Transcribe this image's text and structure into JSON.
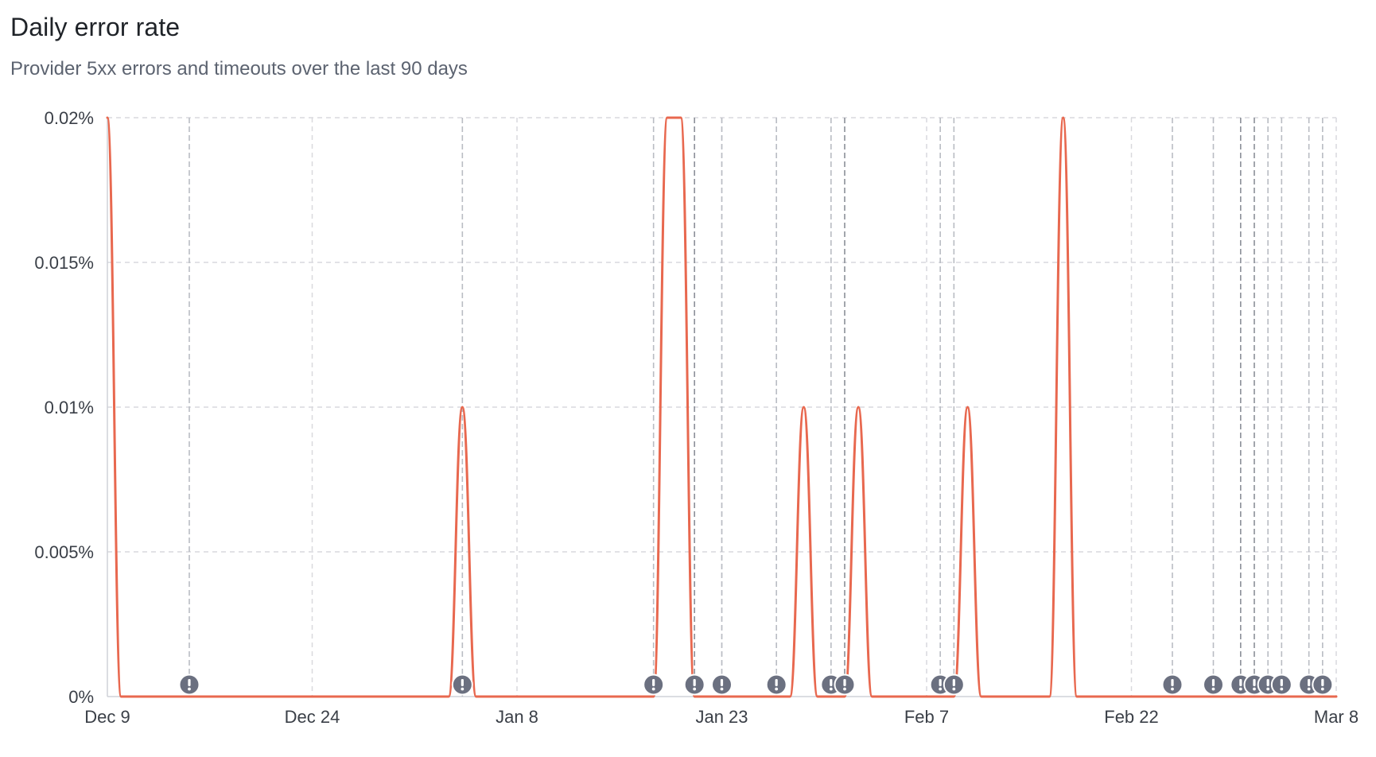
{
  "header": {
    "title": "Daily error rate",
    "subtitle": "Provider 5xx errors and timeouts over the last 90 days"
  },
  "colors": {
    "line": "#e8684f",
    "grid": "#d9d9de",
    "marker_line": "#b9bcc3",
    "marker_line_dark": "#8b8f98",
    "marker_fill": "#6b7080",
    "axis": "#cfd2d8",
    "tick_text": "#3a3f47"
  },
  "chart_data": {
    "type": "line",
    "title": "Daily error rate",
    "subtitle": "Provider 5xx errors and timeouts over the last 90 days",
    "x_start": "Dec 9",
    "x_tick_labels": [
      "Dec 9",
      "Dec 24",
      "Jan 8",
      "Jan 23",
      "Feb 7",
      "Feb 22",
      "Mar 8"
    ],
    "y_tick_labels": [
      "0%",
      "0.005%",
      "0.01%",
      "0.015%",
      "0.02%"
    ],
    "ylim": [
      0,
      0.02
    ],
    "y_unit": "%",
    "grid": true,
    "series": [
      {
        "color": "#e8684f",
        "points": [
          [
            "Dec 9",
            0.02
          ],
          [
            "Dec 10",
            0
          ],
          [
            "Jan 3",
            0
          ],
          [
            "Jan 4",
            0.01
          ],
          [
            "Jan 5",
            0
          ],
          [
            "Jan 18",
            0
          ],
          [
            "Jan 19",
            0.02
          ],
          [
            "Jan 20",
            0.02
          ],
          [
            "Jan 21",
            0
          ],
          [
            "Jan 28",
            0
          ],
          [
            "Jan 29",
            0.01
          ],
          [
            "Jan 30",
            0
          ],
          [
            "Feb 1",
            0
          ],
          [
            "Feb 2",
            0.01
          ],
          [
            "Feb 3",
            0
          ],
          [
            "Feb 9",
            0
          ],
          [
            "Feb 10",
            0.01
          ],
          [
            "Feb 11",
            0
          ],
          [
            "Feb 16",
            0
          ],
          [
            "Feb 17",
            0.02
          ],
          [
            "Feb 18",
            0
          ],
          [
            "Mar 8",
            0
          ]
        ]
      }
    ],
    "incident_markers": [
      {
        "date": "Dec 15",
        "icon": "alert-icon"
      },
      {
        "date": "Jan 4",
        "icon": "alert-icon"
      },
      {
        "date": "Jan 18",
        "icon": "alert-icon"
      },
      {
        "date": "Jan 21",
        "icon": "alert-icon"
      },
      {
        "date": "Jan 23",
        "icon": "alert-icon"
      },
      {
        "date": "Jan 27",
        "icon": "alert-icon"
      },
      {
        "date": "Jan 31",
        "icon": "alert-icon"
      },
      {
        "date": "Feb 1",
        "icon": "alert-icon"
      },
      {
        "date": "Feb 8",
        "icon": "alert-icon"
      },
      {
        "date": "Feb 9",
        "icon": "alert-icon"
      },
      {
        "date": "Feb 25",
        "icon": "alert-icon"
      },
      {
        "date": "Feb 28",
        "icon": "alert-icon"
      },
      {
        "date": "Mar 1",
        "icon": "alert-icon"
      },
      {
        "date": "Mar 2",
        "icon": "alert-icon"
      },
      {
        "date": "Mar 3",
        "icon": "alert-icon"
      },
      {
        "date": "Mar 4",
        "icon": "alert-icon"
      },
      {
        "date": "Mar 6",
        "icon": "alert-icon"
      },
      {
        "date": "Mar 7",
        "icon": "alert-icon"
      }
    ]
  }
}
